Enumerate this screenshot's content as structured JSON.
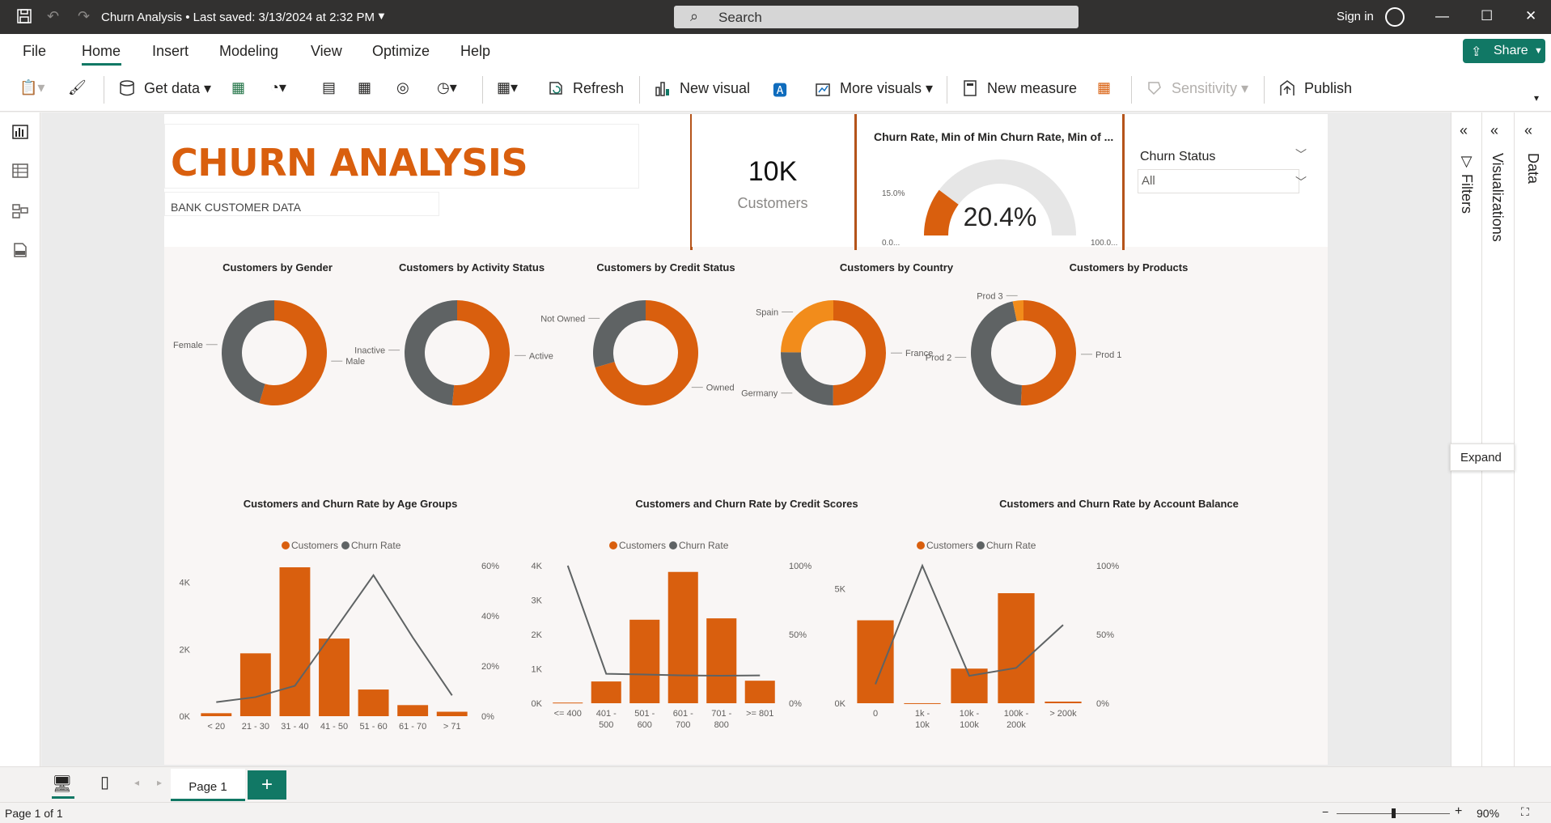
{
  "titlebar": {
    "doc_title": "Churn Analysis",
    "saved": "Last saved: 3/13/2024 at 2:32 PM",
    "search_placeholder": "Search",
    "sign_in": "Sign in"
  },
  "menu": {
    "items": [
      "File",
      "Home",
      "Insert",
      "Modeling",
      "View",
      "Optimize",
      "Help"
    ],
    "active": "Home",
    "share": "Share"
  },
  "toolbar": {
    "get_data": "Get data",
    "refresh": "Refresh",
    "new_visual": "New visual",
    "more_visuals": "More visuals",
    "new_measure": "New measure",
    "sensitivity": "Sensitivity",
    "publish": "Publish"
  },
  "report": {
    "title": "CHURN ANALYSIS",
    "subtitle": "BANK CUSTOMER DATA",
    "kpi": {
      "value": "10K",
      "label": "Customers"
    },
    "gauge": {
      "title": "Churn Rate, Min of Min Churn Rate, Min of ...",
      "value": "20.4%",
      "value_num": 20.4,
      "min_label": "0.0...",
      "max_label": "100.0...",
      "target_label": "15.0%",
      "fill_color": "#d95f0e",
      "track_color": "#e6e6e6"
    },
    "slicer": {
      "title": "Churn Status",
      "value": "All"
    }
  },
  "colors": {
    "orange": "#d95f0e",
    "gray": "#5f6364",
    "light_orange": "#f28c1b"
  },
  "chart_data": [
    {
      "type": "pie",
      "title": "Customers by Gender",
      "categories": [
        "Male",
        "Female"
      ],
      "values": [
        54.6,
        45.4
      ]
    },
    {
      "type": "pie",
      "title": "Customers by Activity Status",
      "categories": [
        "Active",
        "Inactive"
      ],
      "values": [
        51.5,
        48.5
      ]
    },
    {
      "type": "pie",
      "title": "Customers by Credit Status",
      "categories": [
        "Owned",
        "Not Owned"
      ],
      "values": [
        70.5,
        29.5
      ]
    },
    {
      "type": "pie",
      "title": "Customers by Country",
      "categories": [
        "France",
        "Germany",
        "Spain"
      ],
      "values": [
        50.1,
        25.1,
        24.8
      ]
    },
    {
      "type": "pie",
      "title": "Customers by Products",
      "categories": [
        "Prod 1",
        "Prod 2",
        "Prod 3"
      ],
      "values": [
        50.8,
        45.9,
        3.3
      ]
    },
    {
      "type": "bar",
      "title": "Customers and Churn Rate by Age Groups",
      "categories": [
        "< 20",
        "21 - 30",
        "31 - 40",
        "41 - 50",
        "51 - 60",
        "61 - 70",
        "> 71"
      ],
      "series": [
        {
          "name": "Customers",
          "values": [
            89,
            1879,
            4451,
            2320,
            797,
            331,
            133
          ]
        },
        {
          "name": "Churn Rate",
          "values": [
            5.6,
            7.6,
            12.1,
            34.0,
            56.2,
            31.4,
            8.3
          ]
        }
      ],
      "ylim": [
        0,
        4500
      ],
      "y_ticks": [
        "0K",
        "2K",
        "4K"
      ],
      "y2lim": [
        0,
        60
      ],
      "y2_ticks": [
        "0%",
        "20%",
        "40%",
        "60%"
      ],
      "legend": "top"
    },
    {
      "type": "bar",
      "title": "Customers and Churn Rate by Credit Scores",
      "categories": [
        "<= 400",
        "401 - 500",
        "501 - 600",
        "601 - 700",
        "701 - 800",
        ">= 801"
      ],
      "series": [
        {
          "name": "Customers",
          "values": [
            19,
            633,
            2428,
            3818,
            2468,
            655
          ]
        },
        {
          "name": "Churn Rate",
          "values": [
            100,
            21.4,
            20.9,
            20.2,
            20.0,
            20.2
          ]
        }
      ],
      "ylim": [
        0,
        4000
      ],
      "y_ticks": [
        "0K",
        "1K",
        "2K",
        "3K",
        "4K"
      ],
      "y2lim": [
        0,
        100
      ],
      "y2_ticks": [
        "0%",
        "50%",
        "100%"
      ],
      "legend": "top"
    },
    {
      "type": "bar",
      "title": "Customers and Churn Rate by Account Balance",
      "categories": [
        "0",
        "1k - 10k",
        "10k - 100k",
        "100k - 200k",
        "> 200k"
      ],
      "series": [
        {
          "name": "Customers",
          "values": [
            3617,
            2,
            1510,
            4799,
            72
          ]
        },
        {
          "name": "Churn Rate",
          "values": [
            13.8,
            100,
            19.9,
            25.7,
            56.9
          ]
        }
      ],
      "ylim": [
        0,
        6000
      ],
      "y_ticks": [
        "0K",
        "5K"
      ],
      "y2lim": [
        0,
        100
      ],
      "y2_ticks": [
        "0%",
        "50%",
        "100%"
      ],
      "legend": "top"
    }
  ],
  "panes": {
    "filters": "Filters",
    "visualizations": "Visualizations",
    "data": "Data",
    "tooltip": "Expand"
  },
  "pages": {
    "tab": "Page 1",
    "status": "Page 1 of 1",
    "zoom": "90%"
  }
}
